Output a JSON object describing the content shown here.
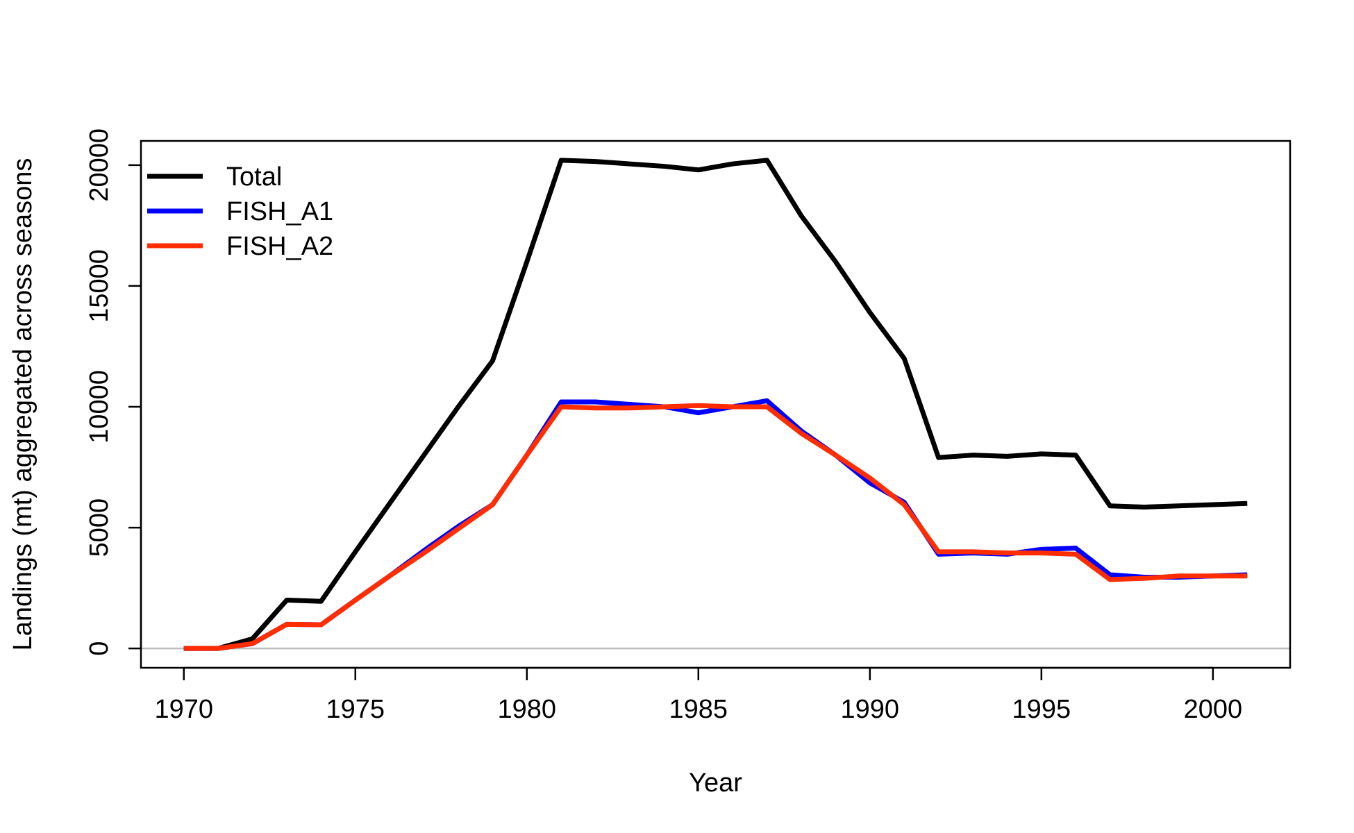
{
  "chart_data": {
    "type": "line",
    "title": "",
    "xlabel": "Year",
    "ylabel": "Landings (mt) aggregated across seasons",
    "xlim": [
      1968.75,
      2002.25
    ],
    "ylim": [
      -800,
      21000
    ],
    "xticks": [
      1970,
      1975,
      1980,
      1985,
      1990,
      1995,
      2000
    ],
    "yticks": [
      0,
      5000,
      10000,
      15000,
      20000
    ],
    "x": [
      1970,
      1971,
      1972,
      1973,
      1974,
      1975,
      1976,
      1977,
      1978,
      1979,
      1980,
      1981,
      1982,
      1983,
      1984,
      1985,
      1986,
      1987,
      1988,
      1989,
      1990,
      1991,
      1992,
      1993,
      1994,
      1995,
      1996,
      1997,
      1998,
      1999,
      2000,
      2001
    ],
    "reference_line": {
      "y": 0,
      "color": "#bebebe"
    },
    "legend_position": "top-left",
    "series": [
      {
        "name": "Total",
        "color": "#000000",
        "values": [
          0,
          0,
          400,
          2000,
          1950,
          4000,
          6000,
          8000,
          10000,
          11900,
          16000,
          20200,
          20150,
          20050,
          19950,
          19800,
          20050,
          20200,
          17900,
          16000,
          13900,
          12000,
          7900,
          8000,
          7950,
          8050,
          8000,
          5900,
          5850,
          5900,
          5950,
          6000
        ]
      },
      {
        "name": "FISH_A1",
        "color": "#0000ff",
        "values": [
          0,
          0,
          200,
          1000,
          980,
          2000,
          3000,
          4050,
          5050,
          5950,
          8000,
          10200,
          10200,
          10100,
          10000,
          9750,
          10000,
          10250,
          9000,
          8000,
          6850,
          6050,
          3900,
          3950,
          3900,
          4100,
          4150,
          3050,
          2950,
          2950,
          3000,
          3050
        ]
      },
      {
        "name": "FISH_A2",
        "color": "#ff2d00",
        "values": [
          0,
          0,
          200,
          1000,
          980,
          2000,
          3000,
          3950,
          4950,
          5950,
          8000,
          10000,
          9950,
          9950,
          10000,
          10050,
          10000,
          10000,
          8900,
          8000,
          7050,
          5950,
          4000,
          4000,
          3950,
          3950,
          3900,
          2850,
          2900,
          3000,
          3000,
          3000
        ]
      }
    ]
  }
}
